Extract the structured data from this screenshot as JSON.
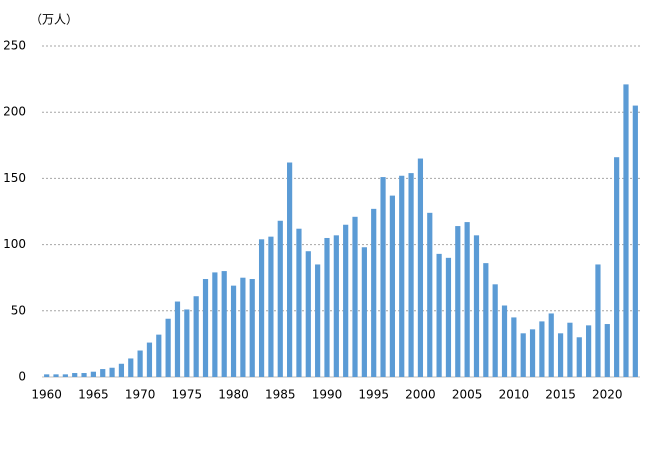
{
  "chart_data": {
    "type": "bar",
    "y_label": "（万人）",
    "categories": [
      "1960",
      null,
      null,
      null,
      null,
      "1965",
      null,
      null,
      null,
      null,
      "1970",
      null,
      null,
      null,
      null,
      "1975",
      null,
      null,
      null,
      null,
      "1980",
      null,
      null,
      null,
      null,
      "1985",
      null,
      null,
      null,
      null,
      "1990",
      null,
      null,
      null,
      null,
      "1995",
      null,
      null,
      null,
      null,
      "2000",
      null,
      null,
      null,
      null,
      "2005",
      null,
      null,
      null,
      null,
      "2010",
      null,
      null,
      null,
      null,
      "2015",
      null,
      null,
      null,
      null,
      "2020",
      null,
      null,
      null
    ],
    "values": [
      2,
      2,
      2,
      3,
      3,
      4,
      6,
      7,
      10,
      14,
      20,
      26,
      32,
      44,
      57,
      51,
      61,
      74,
      79,
      80,
      69,
      75,
      74,
      104,
      106,
      118,
      162,
      112,
      95,
      85,
      105,
      107,
      115,
      121,
      98,
      127,
      151,
      137,
      152,
      154,
      165,
      124,
      93,
      90,
      114,
      117,
      107,
      86,
      70,
      54,
      45,
      33,
      36,
      42,
      48,
      33,
      41,
      30,
      39,
      85,
      40,
      166,
      221,
      205
    ],
    "color": "#5b9bd5",
    "ylim": [
      0,
      250
    ],
    "yticks": [
      0,
      50,
      100,
      150,
      200,
      250
    ],
    "grid": true
  }
}
